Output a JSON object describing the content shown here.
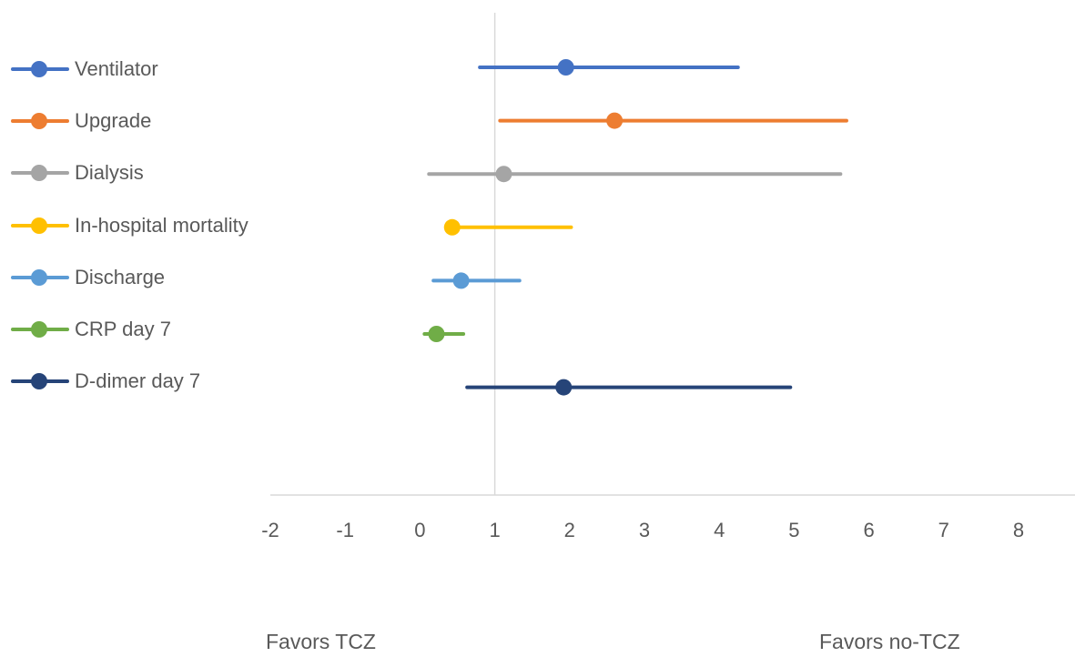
{
  "chart_data": {
    "type": "scatter",
    "subtype": "forest-plot",
    "title": "",
    "xlabel": "",
    "ylabel": "",
    "xlim": [
      -2,
      8.7
    ],
    "xticks": [
      "-2",
      "-1",
      "0",
      "1",
      "2",
      "3",
      "4",
      "5",
      "6",
      "7",
      "8"
    ],
    "reference_line": 1,
    "grid": false,
    "legend_position": "left",
    "series": [
      {
        "name": "Ventilator",
        "color": "#4472C4",
        "estimate": 1.95,
        "lower": 0.8,
        "upper": 4.25
      },
      {
        "name": "Upgrade",
        "color": "#ED7D31",
        "estimate": 2.6,
        "lower": 1.07,
        "upper": 5.7
      },
      {
        "name": "Dialysis",
        "color": "#A5A5A5",
        "estimate": 1.12,
        "lower": 0.12,
        "upper": 5.62
      },
      {
        "name": "In-hospital mortality",
        "color": "#FFC000",
        "estimate": 0.43,
        "lower": 0.43,
        "upper": 2.02
      },
      {
        "name": "Discharge",
        "color": "#5B9BD5",
        "estimate": 0.55,
        "lower": 0.18,
        "upper": 1.33
      },
      {
        "name": "CRP day 7",
        "color": "#70AD47",
        "estimate": 0.22,
        "lower": 0.06,
        "upper": 0.58
      },
      {
        "name": "D-dimer day 7",
        "color": "#264478",
        "estimate": 1.92,
        "lower": 0.63,
        "upper": 4.95
      }
    ],
    "annotations": {
      "left": "Favors TCZ",
      "right": "Favors no-TCZ"
    }
  }
}
